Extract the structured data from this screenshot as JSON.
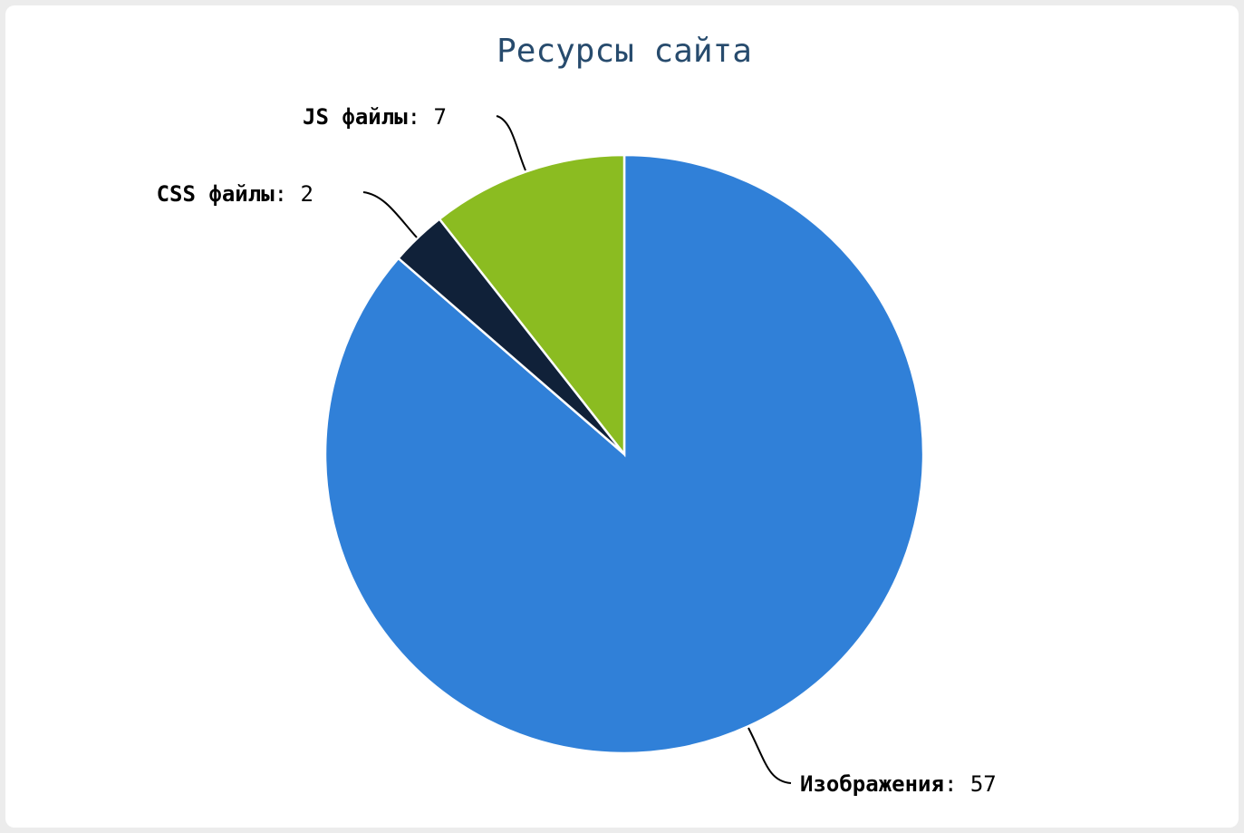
{
  "chart_data": {
    "type": "pie",
    "title": "Ресурсы сайта",
    "label_separator": ":",
    "slices": [
      {
        "name": "Изображения",
        "value": 57,
        "color": "#3080d8"
      },
      {
        "name": "CSS файлы",
        "value": 2,
        "color": "#102139"
      },
      {
        "name": "JS файлы",
        "value": 7,
        "color": "#8bbc21"
      }
    ],
    "start_angle_deg": 0,
    "direction": "clockwise",
    "data_labels": true
  }
}
